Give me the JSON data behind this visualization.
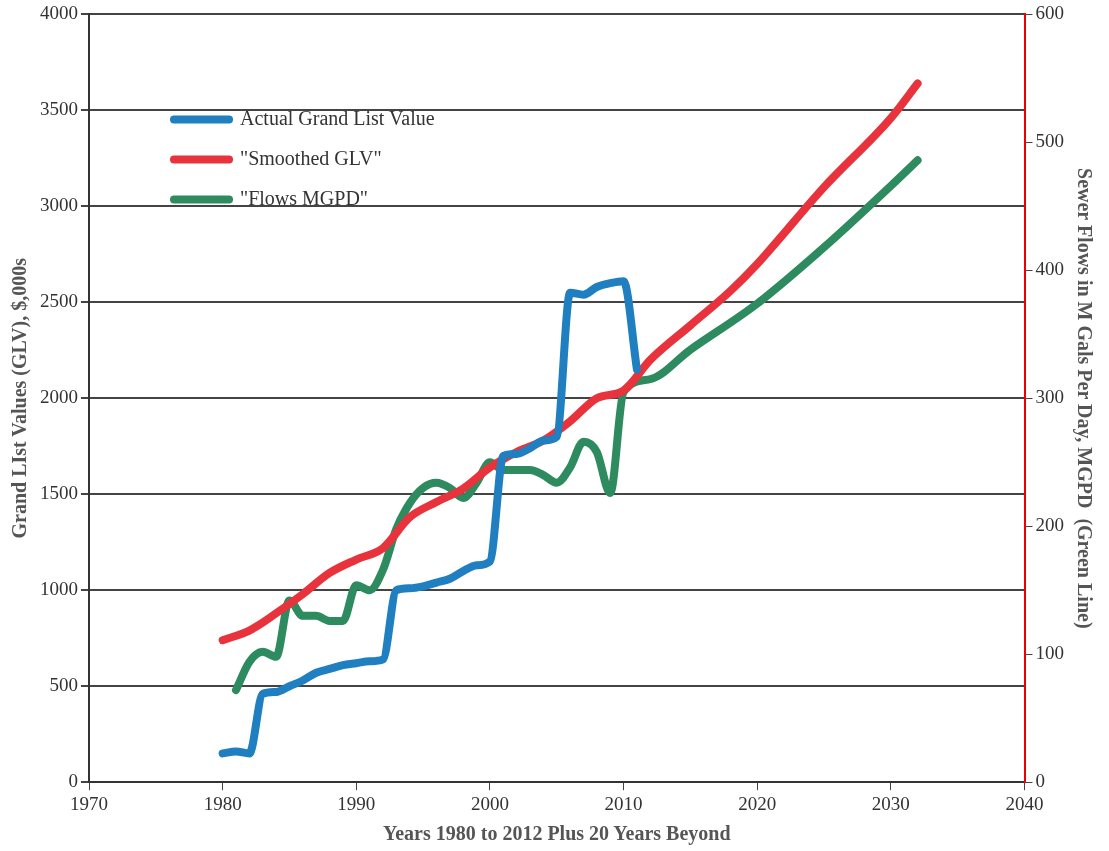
{
  "chart_data": {
    "type": "line",
    "xlabel": "Years 1980 to 2012 Plus 20 Years Beyond",
    "ylabel": "Grand LIst Values (GLV), $,000s",
    "y2label": "Sewer Flows in M Gals Per Day, MGPD  (Green Line)",
    "xlim": [
      1970,
      2040
    ],
    "xticks": [
      1970,
      1980,
      1990,
      2000,
      2010,
      2020,
      2030,
      2040
    ],
    "ylim": [
      0,
      4000
    ],
    "yticks": [
      0,
      500,
      1000,
      1500,
      2000,
      2500,
      3000,
      3500,
      4000
    ],
    "y2lim": [
      0,
      600
    ],
    "y2ticks": [
      0,
      100,
      200,
      300,
      400,
      500,
      600
    ],
    "grid": "y",
    "legend": "top left",
    "marker": "none",
    "line_style": "solid",
    "series": [
      {
        "name": "Actual Grand List Value",
        "color": "#1f7fc0",
        "x": [
          1980,
          1981,
          1982,
          1983,
          1984,
          1985,
          1986,
          1987,
          1988,
          1989,
          1990,
          1991,
          1992,
          1993,
          1994,
          1995,
          1996,
          1997,
          1998,
          1999,
          2000,
          2001,
          2002,
          2003,
          2004,
          2005,
          2006,
          2007,
          2008,
          2009,
          2010,
          2011
        ],
        "values": [
          150,
          160,
          150,
          460,
          470,
          500,
          530,
          570,
          590,
          610,
          620,
          630,
          640,
          1000,
          1010,
          1020,
          1040,
          1060,
          1100,
          1130,
          1150,
          1700,
          1710,
          1740,
          1780,
          1800,
          2550,
          2540,
          2580,
          2600,
          2610,
          2150
        ]
      },
      {
        "name": "\"Smoothed GLV\"",
        "color": "#e8323c",
        "x": [
          1980,
          1982,
          1984,
          1986,
          1988,
          1990,
          1992,
          1994,
          1996,
          1998,
          2000,
          2002,
          2004,
          2006,
          2008,
          2010,
          2012,
          2015,
          2018,
          2020,
          2025,
          2030,
          2032
        ],
        "values": [
          740,
          790,
          880,
          980,
          1090,
          1160,
          1220,
          1380,
          1460,
          1530,
          1640,
          1720,
          1780,
          1880,
          2000,
          2040,
          2200,
          2380,
          2560,
          2700,
          3100,
          3460,
          3640
        ]
      },
      {
        "name": "\"Flows MGPD\"",
        "color": "#2e8b5f",
        "axis": "y2",
        "x": [
          1981,
          1982,
          1983,
          1984,
          1985,
          1986,
          1987,
          1988,
          1989,
          1990,
          1991,
          1992,
          1993,
          1994,
          1995,
          1996,
          1997,
          1998,
          1999,
          2000,
          2001,
          2002,
          2003,
          2004,
          2005,
          2006,
          2007,
          2008,
          2009,
          2010,
          2012,
          2015,
          2020,
          2025,
          2030,
          2032
        ],
        "values": [
          72,
          94,
          102,
          98,
          142,
          130,
          130,
          126,
          126,
          154,
          150,
          166,
          198,
          218,
          230,
          234,
          230,
          222,
          234,
          250,
          244,
          244,
          244,
          240,
          234,
          246,
          266,
          258,
          226,
          305,
          315,
          338,
          374,
          418,
          466,
          486
        ]
      }
    ]
  }
}
